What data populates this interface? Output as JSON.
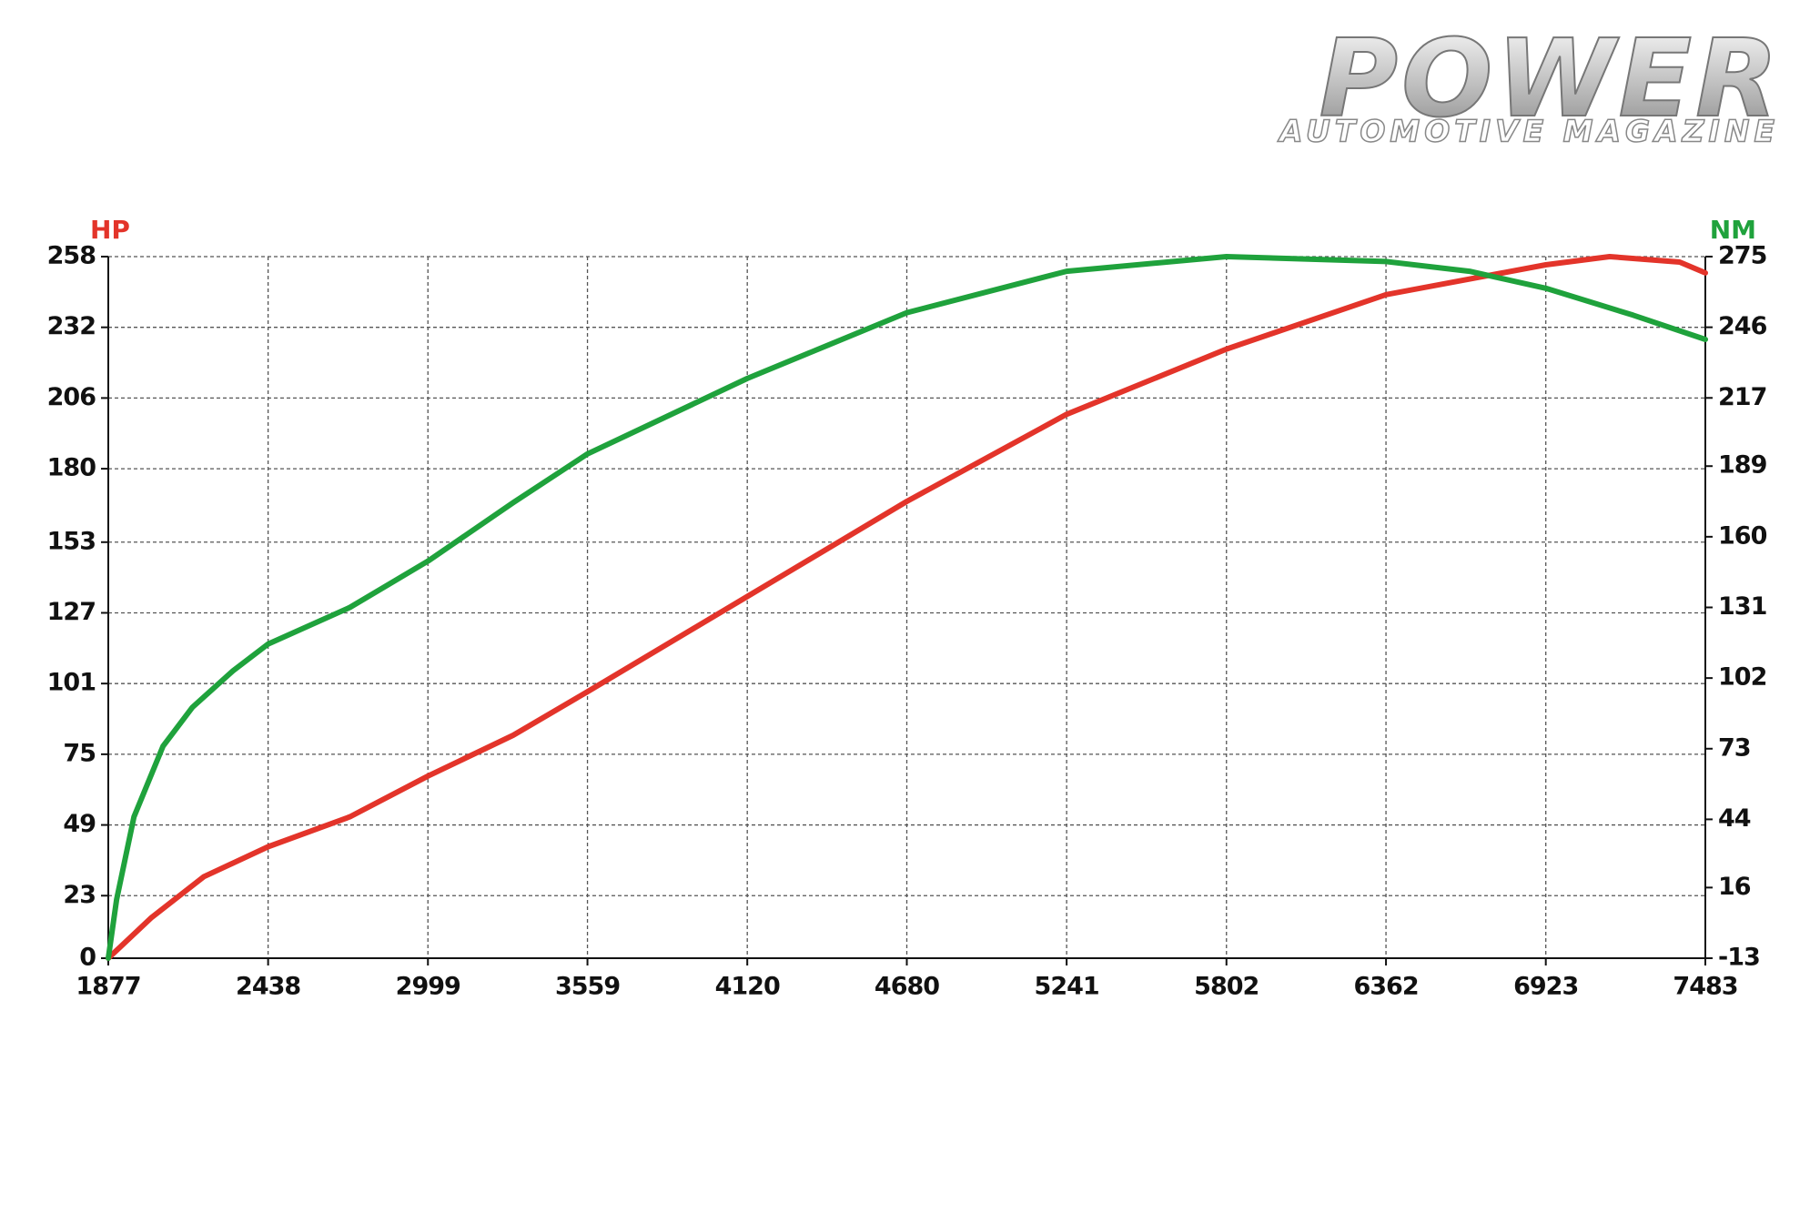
{
  "brand": {
    "title": "POWER",
    "subtitle": "AUTOMOTIVE MAGAZINE"
  },
  "chart_data": {
    "type": "line",
    "xlim": [
      1877,
      7483
    ],
    "xticks": [
      1877,
      2438,
      2999,
      3559,
      4120,
      4680,
      5241,
      5802,
      6362,
      6923,
      7483
    ],
    "ylim": [
      0,
      258
    ],
    "yticks": [
      0,
      23,
      49,
      75,
      101,
      127,
      153,
      180,
      206,
      232,
      258
    ],
    "y2lim": [
      -13,
      275
    ],
    "y2ticks": [
      -13,
      16,
      44,
      73,
      102,
      131,
      160,
      189,
      217,
      246,
      275
    ],
    "grid": true,
    "series": [
      {
        "name": "HP",
        "color": "#e3342a",
        "axis": "y",
        "x": [
          1877,
          2029,
          2213,
          2438,
          2725,
          2999,
          3298,
          3559,
          4120,
          4680,
          5241,
          5802,
          6362,
          6923,
          7147,
          7393,
          7483
        ],
        "values": [
          0,
          15,
          30,
          41,
          52,
          67,
          82,
          98,
          133,
          168,
          200,
          224,
          244,
          255,
          258,
          256,
          252
        ]
      },
      {
        "name": "NM",
        "color": "#1fa23c",
        "axis": "y2",
        "x": [
          1877,
          1906,
          1967,
          2069,
          2172,
          2315,
          2438,
          2725,
          2999,
          3298,
          3559,
          4120,
          4680,
          5241,
          5802,
          6362,
          6655,
          6923,
          7229,
          7483
        ],
        "values": [
          -13,
          11,
          45,
          74,
          90,
          105,
          116,
          131,
          150,
          174,
          194,
          225,
          252,
          269,
          275,
          273,
          269,
          262,
          251,
          241
        ]
      }
    ]
  }
}
